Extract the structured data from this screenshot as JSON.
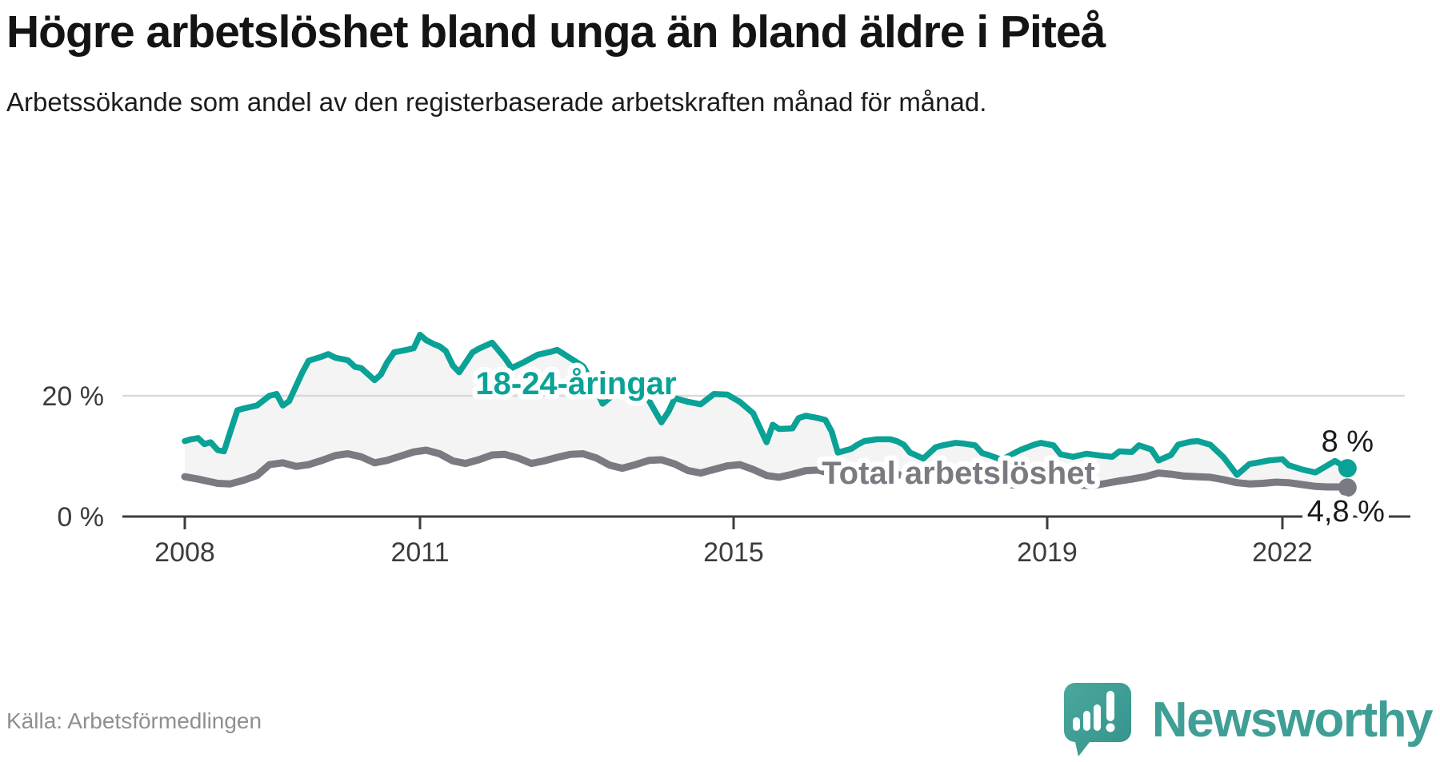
{
  "header": {
    "title": "Högre arbetslöshet bland unga än bland äldre i Piteå",
    "subtitle": "Arbetssökande som andel av den registerbaserade arbetskraften månad för månad."
  },
  "footer": {
    "source": "Källa: Arbetsförmedlingen",
    "brand": "Newsworthy"
  },
  "colors": {
    "youth": "#0aa296",
    "total": "#7a7a82",
    "band": "#f4f4f4",
    "grid": "#d9d9d9",
    "axis": "#3c3c3c",
    "tick_text": "#3c3c3c",
    "end_label_text": "#1a1a1a",
    "logo_teal": "#3f9f96",
    "source_text": "#8f8f8f"
  },
  "chart_data": {
    "type": "line",
    "x_range": [
      2008.0,
      2023.6
    ],
    "ylim": [
      0,
      32
    ],
    "grid": "single-line-at-20",
    "legend_position": "inline-labels",
    "x_ticks": [
      {
        "x": 2008,
        "label": "2008"
      },
      {
        "x": 2011,
        "label": "2011"
      },
      {
        "x": 2015,
        "label": "2015"
      },
      {
        "x": 2019,
        "label": "2019"
      },
      {
        "x": 2022,
        "label": "2022"
      }
    ],
    "y_ticks": [
      {
        "v": 0,
        "label": "0 %"
      },
      {
        "v": 20,
        "label": "20 %"
      }
    ],
    "series": [
      {
        "name": "18-24-åringar",
        "role": "youth",
        "end_label": "8 %",
        "end_value": 8.0,
        "points": [
          [
            2008.0,
            12.5
          ],
          [
            2008.08,
            12.8
          ],
          [
            2008.17,
            13.0
          ],
          [
            2008.25,
            12.0
          ],
          [
            2008.33,
            12.3
          ],
          [
            2008.42,
            11.0
          ],
          [
            2008.5,
            10.8
          ],
          [
            2008.58,
            14.0
          ],
          [
            2008.67,
            17.6
          ],
          [
            2008.75,
            17.9
          ],
          [
            2008.92,
            18.4
          ],
          [
            2009.08,
            20.0
          ],
          [
            2009.17,
            20.3
          ],
          [
            2009.25,
            18.4
          ],
          [
            2009.33,
            19.1
          ],
          [
            2009.5,
            23.9
          ],
          [
            2009.58,
            25.8
          ],
          [
            2009.75,
            26.5
          ],
          [
            2009.83,
            26.9
          ],
          [
            2009.92,
            26.3
          ],
          [
            2010.08,
            25.9
          ],
          [
            2010.17,
            24.8
          ],
          [
            2010.25,
            24.6
          ],
          [
            2010.42,
            22.6
          ],
          [
            2010.5,
            23.5
          ],
          [
            2010.58,
            25.5
          ],
          [
            2010.67,
            27.2
          ],
          [
            2010.83,
            27.6
          ],
          [
            2010.92,
            27.9
          ],
          [
            2011.0,
            30.1
          ],
          [
            2011.08,
            29.2
          ],
          [
            2011.17,
            28.6
          ],
          [
            2011.25,
            28.2
          ],
          [
            2011.33,
            27.4
          ],
          [
            2011.42,
            25.0
          ],
          [
            2011.5,
            23.9
          ],
          [
            2011.67,
            27.2
          ],
          [
            2011.75,
            27.8
          ],
          [
            2011.92,
            28.8
          ],
          [
            2012.08,
            26.3
          ],
          [
            2012.17,
            24.6
          ],
          [
            2012.33,
            25.6
          ],
          [
            2012.5,
            26.8
          ],
          [
            2012.67,
            27.3
          ],
          [
            2012.75,
            27.6
          ],
          [
            2012.92,
            26.2
          ],
          [
            2013.08,
            24.9
          ],
          [
            2013.25,
            21.0
          ],
          [
            2013.33,
            18.7
          ],
          [
            2013.5,
            20.5
          ],
          [
            2013.67,
            22.4
          ],
          [
            2013.75,
            23.0
          ],
          [
            2013.92,
            19.2
          ],
          [
            2014.08,
            15.6
          ],
          [
            2014.17,
            17.4
          ],
          [
            2014.25,
            19.6
          ],
          [
            2014.42,
            19.0
          ],
          [
            2014.58,
            18.6
          ],
          [
            2014.75,
            20.3
          ],
          [
            2014.92,
            20.2
          ],
          [
            2015.08,
            19.0
          ],
          [
            2015.25,
            17.1
          ],
          [
            2015.42,
            12.3
          ],
          [
            2015.5,
            15.2
          ],
          [
            2015.58,
            14.5
          ],
          [
            2015.75,
            14.6
          ],
          [
            2015.83,
            16.3
          ],
          [
            2015.92,
            16.7
          ],
          [
            2016.08,
            16.3
          ],
          [
            2016.17,
            16.0
          ],
          [
            2016.25,
            14.1
          ],
          [
            2016.33,
            10.6
          ],
          [
            2016.5,
            11.2
          ],
          [
            2016.58,
            11.9
          ],
          [
            2016.67,
            12.5
          ],
          [
            2016.83,
            12.8
          ],
          [
            2017.0,
            12.8
          ],
          [
            2017.08,
            12.5
          ],
          [
            2017.17,
            11.9
          ],
          [
            2017.25,
            10.6
          ],
          [
            2017.42,
            9.6
          ],
          [
            2017.58,
            11.5
          ],
          [
            2017.67,
            11.8
          ],
          [
            2017.83,
            12.2
          ],
          [
            2017.92,
            12.1
          ],
          [
            2018.08,
            11.8
          ],
          [
            2018.17,
            10.5
          ],
          [
            2018.25,
            10.2
          ],
          [
            2018.42,
            9.4
          ],
          [
            2018.58,
            10.5
          ],
          [
            2018.67,
            11.1
          ],
          [
            2018.83,
            11.9
          ],
          [
            2018.92,
            12.2
          ],
          [
            2019.08,
            11.8
          ],
          [
            2019.17,
            10.3
          ],
          [
            2019.33,
            9.9
          ],
          [
            2019.5,
            10.4
          ],
          [
            2019.67,
            10.1
          ],
          [
            2019.83,
            9.9
          ],
          [
            2019.92,
            10.8
          ],
          [
            2020.08,
            10.7
          ],
          [
            2020.17,
            11.8
          ],
          [
            2020.33,
            11.1
          ],
          [
            2020.42,
            9.3
          ],
          [
            2020.58,
            10.2
          ],
          [
            2020.67,
            11.9
          ],
          [
            2020.83,
            12.4
          ],
          [
            2020.92,
            12.5
          ],
          [
            2021.08,
            11.9
          ],
          [
            2021.25,
            9.8
          ],
          [
            2021.42,
            6.9
          ],
          [
            2021.58,
            8.7
          ],
          [
            2021.67,
            8.9
          ],
          [
            2021.83,
            9.3
          ],
          [
            2022.0,
            9.5
          ],
          [
            2022.08,
            8.5
          ],
          [
            2022.25,
            7.8
          ],
          [
            2022.42,
            7.3
          ],
          [
            2022.58,
            8.5
          ],
          [
            2022.67,
            9.2
          ],
          [
            2022.75,
            8.6
          ],
          [
            2022.83,
            8.0
          ]
        ]
      },
      {
        "name": "Total arbetslöshet",
        "role": "total",
        "end_label": "4,8 %",
        "end_value": 4.8,
        "points": [
          [
            2008.0,
            6.6
          ],
          [
            2008.17,
            6.2
          ],
          [
            2008.42,
            5.5
          ],
          [
            2008.58,
            5.4
          ],
          [
            2008.75,
            6.0
          ],
          [
            2008.92,
            6.8
          ],
          [
            2009.08,
            8.6
          ],
          [
            2009.25,
            8.9
          ],
          [
            2009.42,
            8.3
          ],
          [
            2009.58,
            8.6
          ],
          [
            2009.75,
            9.3
          ],
          [
            2009.92,
            10.1
          ],
          [
            2010.08,
            10.4
          ],
          [
            2010.25,
            9.9
          ],
          [
            2010.42,
            8.9
          ],
          [
            2010.58,
            9.3
          ],
          [
            2010.75,
            10.0
          ],
          [
            2010.92,
            10.7
          ],
          [
            2011.08,
            11.0
          ],
          [
            2011.25,
            10.4
          ],
          [
            2011.42,
            9.2
          ],
          [
            2011.58,
            8.8
          ],
          [
            2011.75,
            9.4
          ],
          [
            2011.92,
            10.2
          ],
          [
            2012.08,
            10.3
          ],
          [
            2012.25,
            9.7
          ],
          [
            2012.42,
            8.8
          ],
          [
            2012.58,
            9.2
          ],
          [
            2012.75,
            9.8
          ],
          [
            2012.92,
            10.3
          ],
          [
            2013.08,
            10.4
          ],
          [
            2013.25,
            9.7
          ],
          [
            2013.42,
            8.5
          ],
          [
            2013.58,
            8.0
          ],
          [
            2013.75,
            8.6
          ],
          [
            2013.92,
            9.3
          ],
          [
            2014.08,
            9.4
          ],
          [
            2014.25,
            8.7
          ],
          [
            2014.42,
            7.6
          ],
          [
            2014.58,
            7.2
          ],
          [
            2014.75,
            7.8
          ],
          [
            2014.92,
            8.4
          ],
          [
            2015.08,
            8.6
          ],
          [
            2015.25,
            7.8
          ],
          [
            2015.42,
            6.8
          ],
          [
            2015.58,
            6.5
          ],
          [
            2015.75,
            7.0
          ],
          [
            2015.92,
            7.6
          ],
          [
            2016.08,
            7.7
          ],
          [
            2016.25,
            7.1
          ],
          [
            2016.42,
            6.3
          ],
          [
            2016.58,
            6.0
          ],
          [
            2016.75,
            6.4
          ],
          [
            2016.92,
            6.9
          ],
          [
            2017.08,
            7.0
          ],
          [
            2017.25,
            6.5
          ],
          [
            2017.42,
            5.8
          ],
          [
            2017.58,
            5.6
          ],
          [
            2017.75,
            6.0
          ],
          [
            2017.92,
            6.4
          ],
          [
            2018.08,
            6.5
          ],
          [
            2018.25,
            6.0
          ],
          [
            2018.42,
            5.4
          ],
          [
            2018.58,
            5.2
          ],
          [
            2018.75,
            5.6
          ],
          [
            2018.92,
            6.0
          ],
          [
            2019.08,
            6.1
          ],
          [
            2019.25,
            5.7
          ],
          [
            2019.42,
            5.2
          ],
          [
            2019.58,
            5.1
          ],
          [
            2019.75,
            5.5
          ],
          [
            2019.92,
            5.9
          ],
          [
            2020.08,
            6.2
          ],
          [
            2020.25,
            6.6
          ],
          [
            2020.42,
            7.2
          ],
          [
            2020.58,
            7.0
          ],
          [
            2020.75,
            6.7
          ],
          [
            2020.92,
            6.6
          ],
          [
            2021.08,
            6.5
          ],
          [
            2021.25,
            6.1
          ],
          [
            2021.42,
            5.6
          ],
          [
            2021.58,
            5.4
          ],
          [
            2021.75,
            5.5
          ],
          [
            2021.92,
            5.7
          ],
          [
            2022.08,
            5.6
          ],
          [
            2022.25,
            5.3
          ],
          [
            2022.42,
            5.0
          ],
          [
            2022.58,
            4.9
          ],
          [
            2022.75,
            4.9
          ],
          [
            2022.83,
            4.8
          ]
        ]
      }
    ]
  }
}
